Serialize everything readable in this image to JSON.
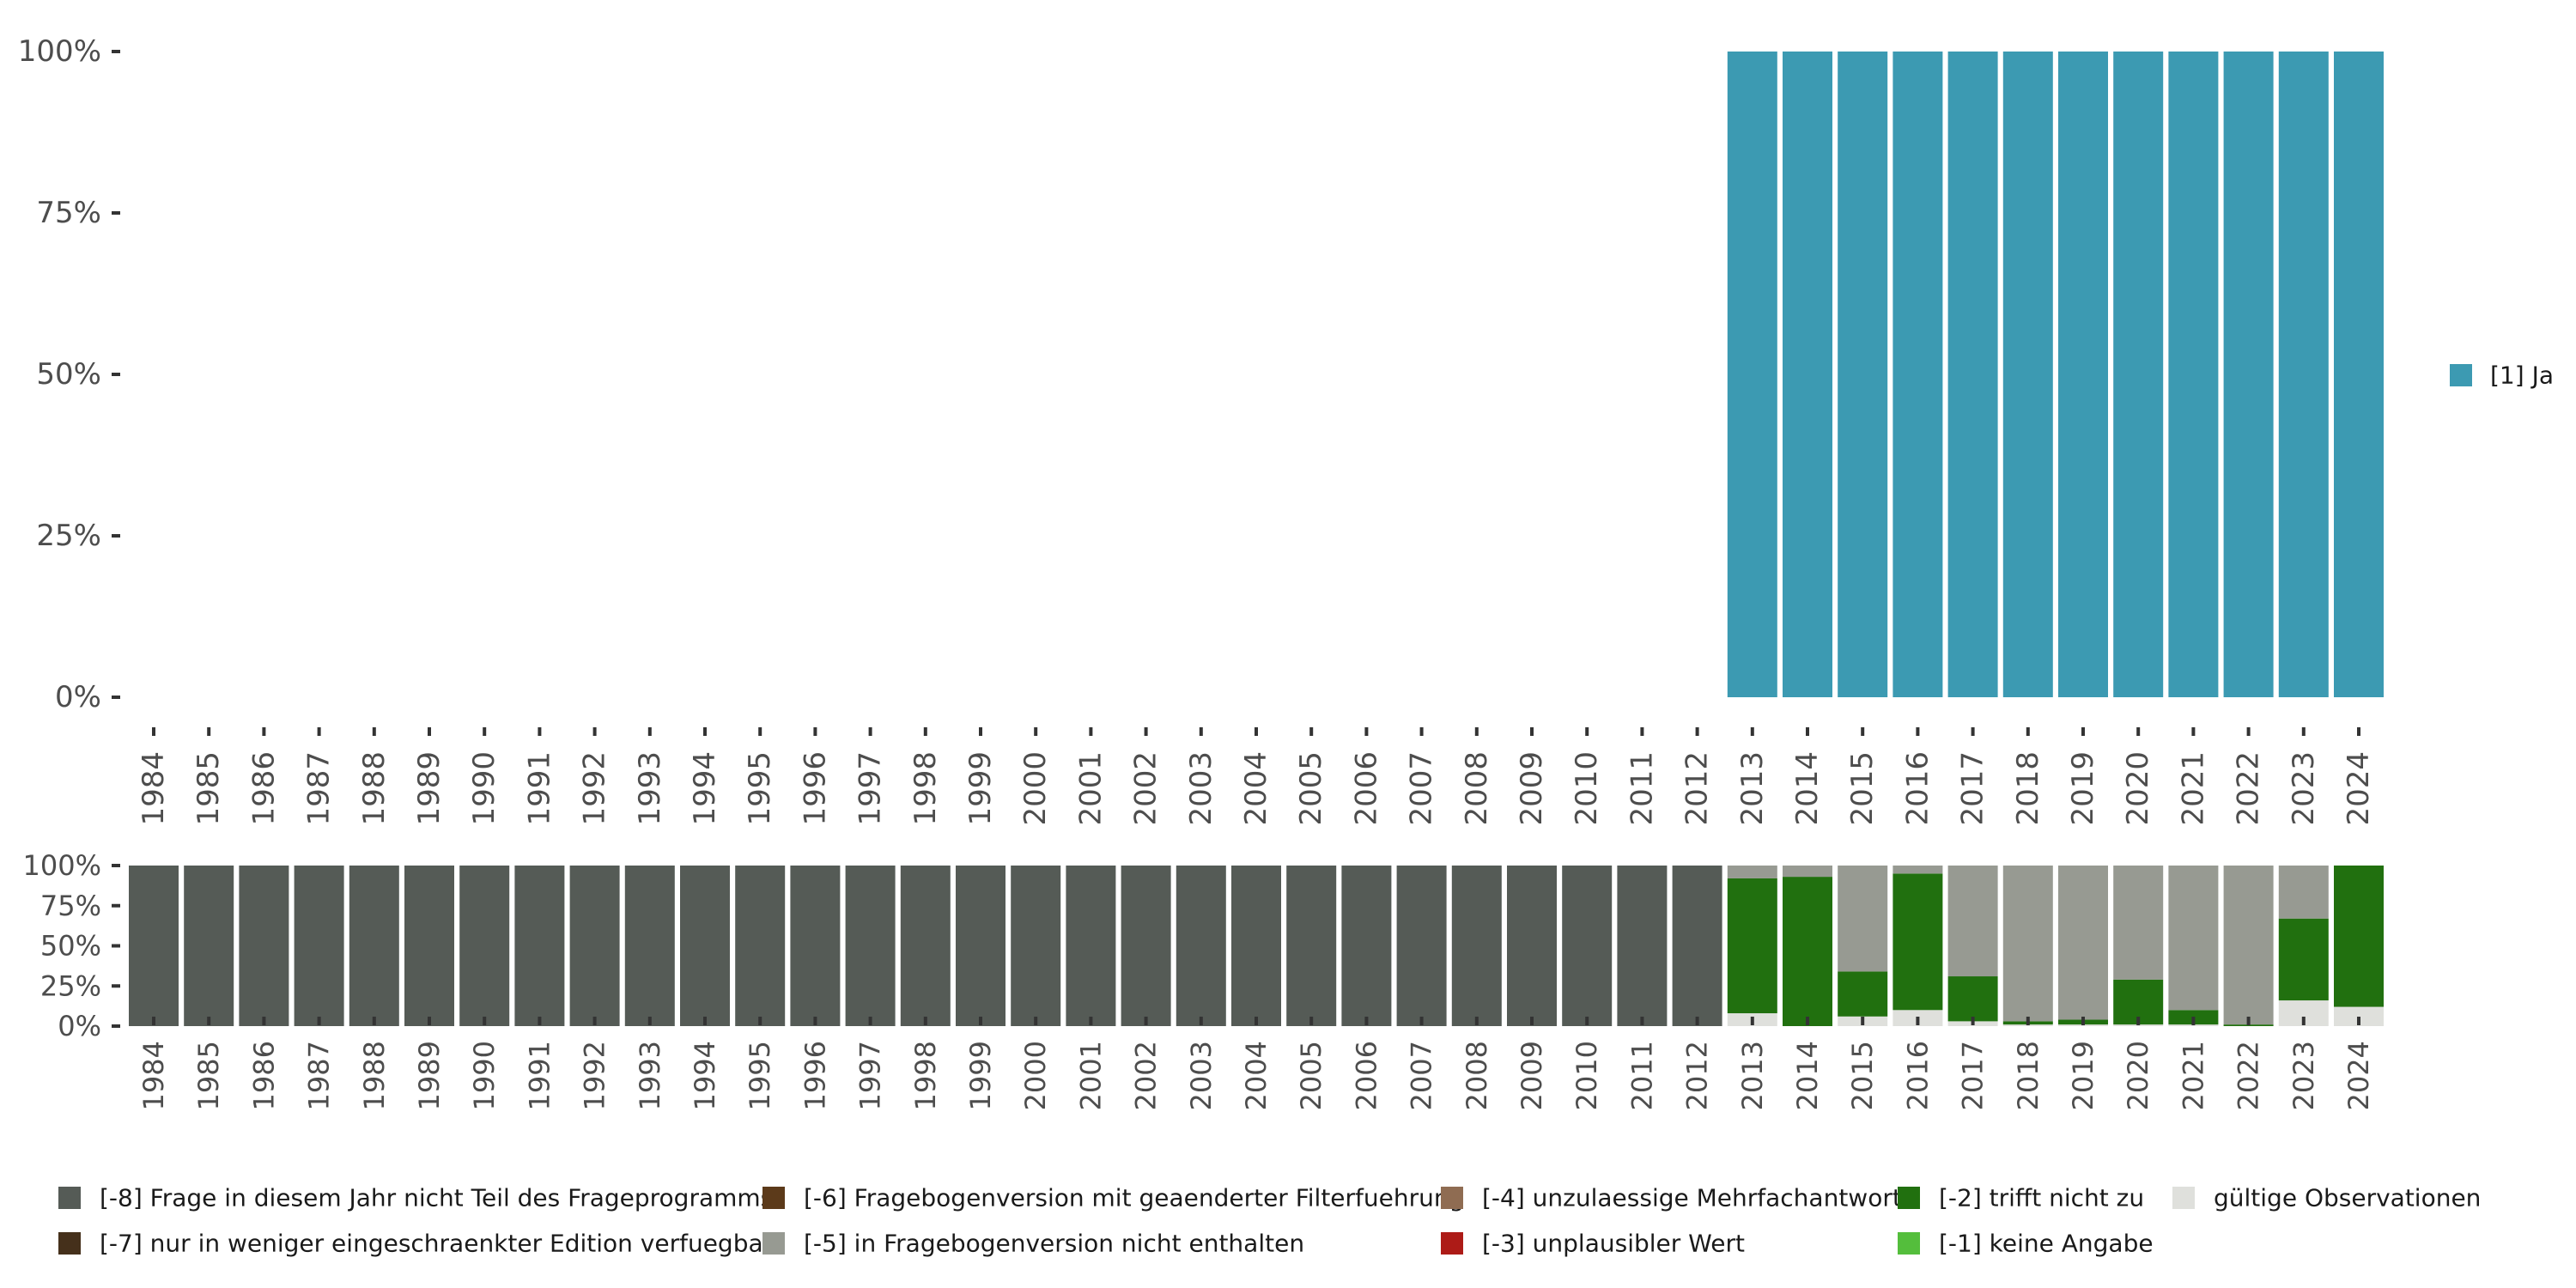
{
  "chart_data": [
    {
      "id": "top",
      "type": "bar",
      "stacked": true,
      "categories": [
        "1984",
        "1985",
        "1986",
        "1987",
        "1988",
        "1989",
        "1990",
        "1991",
        "1992",
        "1993",
        "1994",
        "1995",
        "1996",
        "1997",
        "1998",
        "1999",
        "2000",
        "2001",
        "2002",
        "2003",
        "2004",
        "2005",
        "2006",
        "2007",
        "2008",
        "2009",
        "2010",
        "2011",
        "2012",
        "2013",
        "2014",
        "2015",
        "2016",
        "2017",
        "2018",
        "2019",
        "2020",
        "2021",
        "2022",
        "2023",
        "2024"
      ],
      "ylim": [
        0,
        100
      ],
      "yticks": [
        0,
        25,
        50,
        75,
        100
      ],
      "ytick_labels": [
        "0%",
        "25%",
        "50%",
        "75%",
        "100%"
      ],
      "series": [
        {
          "name": "[1] Ja",
          "color": "#3c9ab2",
          "values": [
            0,
            0,
            0,
            0,
            0,
            0,
            0,
            0,
            0,
            0,
            0,
            0,
            0,
            0,
            0,
            0,
            0,
            0,
            0,
            0,
            0,
            0,
            0,
            0,
            0,
            0,
            0,
            0,
            0,
            100,
            100,
            100,
            100,
            100,
            100,
            100,
            100,
            100,
            100,
            100,
            100
          ]
        }
      ],
      "legend": [
        {
          "label": "[1] Ja",
          "color": "#3c9ab2"
        }
      ],
      "legend_position": "right"
    },
    {
      "id": "bottom",
      "type": "bar",
      "stacked": true,
      "categories": [
        "1984",
        "1985",
        "1986",
        "1987",
        "1988",
        "1989",
        "1990",
        "1991",
        "1992",
        "1993",
        "1994",
        "1995",
        "1996",
        "1997",
        "1998",
        "1999",
        "2000",
        "2001",
        "2002",
        "2003",
        "2004",
        "2005",
        "2006",
        "2007",
        "2008",
        "2009",
        "2010",
        "2011",
        "2012",
        "2013",
        "2014",
        "2015",
        "2016",
        "2017",
        "2018",
        "2019",
        "2020",
        "2021",
        "2022",
        "2023",
        "2024"
      ],
      "ylim": [
        0,
        100
      ],
      "yticks": [
        0,
        25,
        50,
        75,
        100
      ],
      "ytick_labels": [
        "0%",
        "25%",
        "50%",
        "75%",
        "100%"
      ],
      "series": [
        {
          "name": "gültige Observationen",
          "color": "#dfe0dc",
          "values": [
            0,
            0,
            0,
            0,
            0,
            0,
            0,
            0,
            0,
            0,
            0,
            0,
            0,
            0,
            0,
            0,
            0,
            0,
            0,
            0,
            0,
            0,
            0,
            0,
            0,
            0,
            0,
            0,
            0,
            8,
            0,
            6,
            10,
            3,
            1,
            1,
            1,
            1,
            0,
            16,
            12
          ]
        },
        {
          "name": "[-1] keine Angabe",
          "color": "#54be3c",
          "values": [
            0,
            0,
            0,
            0,
            0,
            0,
            0,
            0,
            0,
            0,
            0,
            0,
            0,
            0,
            0,
            0,
            0,
            0,
            0,
            0,
            0,
            0,
            0,
            0,
            0,
            0,
            0,
            0,
            0,
            0,
            0,
            0,
            0,
            0,
            0,
            0,
            0,
            0,
            0,
            0,
            0
          ]
        },
        {
          "name": "[-2] trifft nicht zu",
          "color": "#21700f",
          "values": [
            0,
            0,
            0,
            0,
            0,
            0,
            0,
            0,
            0,
            0,
            0,
            0,
            0,
            0,
            0,
            0,
            0,
            0,
            0,
            0,
            0,
            0,
            0,
            0,
            0,
            0,
            0,
            0,
            0,
            84,
            93,
            28,
            85,
            28,
            2,
            3,
            28,
            9,
            1,
            51,
            88
          ]
        },
        {
          "name": "[-3] unplausibler Wert",
          "color": "#ad1b17",
          "values": [
            0,
            0,
            0,
            0,
            0,
            0,
            0,
            0,
            0,
            0,
            0,
            0,
            0,
            0,
            0,
            0,
            0,
            0,
            0,
            0,
            0,
            0,
            0,
            0,
            0,
            0,
            0,
            0,
            0,
            0,
            0,
            0,
            0,
            0,
            0,
            0,
            0,
            0,
            0,
            0,
            0
          ]
        },
        {
          "name": "[-4] unzulaessige Mehrfachantwort",
          "color": "#8f6c52",
          "values": [
            0,
            0,
            0,
            0,
            0,
            0,
            0,
            0,
            0,
            0,
            0,
            0,
            0,
            0,
            0,
            0,
            0,
            0,
            0,
            0,
            0,
            0,
            0,
            0,
            0,
            0,
            0,
            0,
            0,
            0,
            0,
            0,
            0,
            0,
            0,
            0,
            0,
            0,
            0,
            0,
            0
          ]
        },
        {
          "name": "[-5] in Fragebogenversion nicht enthalten",
          "color": "#979a92",
          "values": [
            0,
            0,
            0,
            0,
            0,
            0,
            0,
            0,
            0,
            0,
            0,
            0,
            0,
            0,
            0,
            0,
            0,
            0,
            0,
            0,
            0,
            0,
            0,
            0,
            0,
            0,
            0,
            0,
            0,
            8,
            7,
            66,
            5,
            69,
            97,
            96,
            71,
            90,
            99,
            33,
            0
          ]
        },
        {
          "name": "[-6] Fragebogenversion mit geaenderter Filterfuehrung",
          "color": "#5c3a1a",
          "values": [
            0,
            0,
            0,
            0,
            0,
            0,
            0,
            0,
            0,
            0,
            0,
            0,
            0,
            0,
            0,
            0,
            0,
            0,
            0,
            0,
            0,
            0,
            0,
            0,
            0,
            0,
            0,
            0,
            0,
            0,
            0,
            0,
            0,
            0,
            0,
            0,
            0,
            0,
            0,
            0,
            0
          ]
        },
        {
          "name": "[-7] nur in weniger eingeschraenkter Edition verfuegbar",
          "color": "#45301b",
          "values": [
            0,
            0,
            0,
            0,
            0,
            0,
            0,
            0,
            0,
            0,
            0,
            0,
            0,
            0,
            0,
            0,
            0,
            0,
            0,
            0,
            0,
            0,
            0,
            0,
            0,
            0,
            0,
            0,
            0,
            0,
            0,
            0,
            0,
            0,
            0,
            0,
            0,
            0,
            0,
            0,
            0
          ]
        },
        {
          "name": "[-8] Frage in diesem Jahr nicht Teil des Frageprogramms",
          "color": "#555b56",
          "values": [
            100,
            100,
            100,
            100,
            100,
            100,
            100,
            100,
            100,
            100,
            100,
            100,
            100,
            100,
            100,
            100,
            100,
            100,
            100,
            100,
            100,
            100,
            100,
            100,
            100,
            100,
            100,
            100,
            100,
            0,
            0,
            0,
            0,
            0,
            0,
            0,
            0,
            0,
            0,
            0,
            0
          ]
        }
      ],
      "legend": [
        {
          "label": "[-8] Frage in diesem Jahr nicht Teil des Frageprogramms",
          "color": "#555b56"
        },
        {
          "label": "[-7] nur in weniger eingeschraenkter Edition verfuegbar",
          "color": "#45301b"
        },
        {
          "label": "[-6] Fragebogenversion mit geaenderter Filterfuehrung",
          "color": "#5c3a1a"
        },
        {
          "label": "[-5] in Fragebogenversion nicht enthalten",
          "color": "#979a92"
        },
        {
          "label": "[-4] unzulaessige Mehrfachantwort",
          "color": "#8f6c52"
        },
        {
          "label": "[-3] unplausibler Wert",
          "color": "#ad1b17"
        },
        {
          "label": "[-2] trifft nicht zu",
          "color": "#21700f"
        },
        {
          "label": "[-1] keine Angabe",
          "color": "#54be3c"
        },
        {
          "label": "gültige Observationen",
          "color": "#dfe0dc"
        }
      ],
      "legend_position": "bottom"
    }
  ]
}
